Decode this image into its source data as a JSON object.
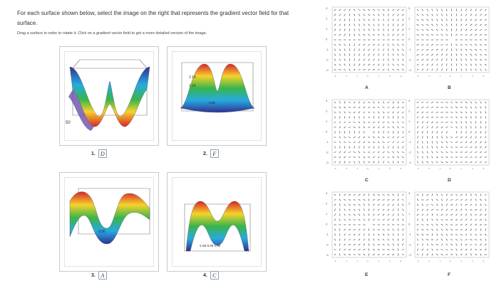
{
  "instructions": {
    "line1": "For each surface shown below, select the image on the right that represents the gradient vector field for that surface.",
    "line2": "Drag a surface in order to rotate it. Click on a gradient vector field to get a more detailed version of the image."
  },
  "surfaces": [
    {
      "number": "1.",
      "answer": "D",
      "label": "50"
    },
    {
      "number": "2.",
      "answer": "F",
      "label_top": "2.14",
      "label_mid": "1.16",
      "label_bottom": "0.00"
    },
    {
      "number": "3.",
      "answer": "A",
      "label": "0.00"
    },
    {
      "number": "4.",
      "answer": "C",
      "label": "-1.50 0.00 1.50"
    }
  ],
  "fields": [
    {
      "label": "A"
    },
    {
      "label": "B"
    },
    {
      "label": "C"
    },
    {
      "label": "D"
    },
    {
      "label": "E"
    },
    {
      "label": "F"
    }
  ],
  "axis": {
    "x_ticks": [
      "-3",
      "-2",
      "-1",
      "0",
      "1",
      "2",
      "3"
    ],
    "y_ticks": [
      "3",
      "2",
      "1",
      "0",
      "-1",
      "-2",
      "-3"
    ]
  },
  "colors": {
    "arrow": "#333333",
    "border": "#c9c9c9"
  }
}
